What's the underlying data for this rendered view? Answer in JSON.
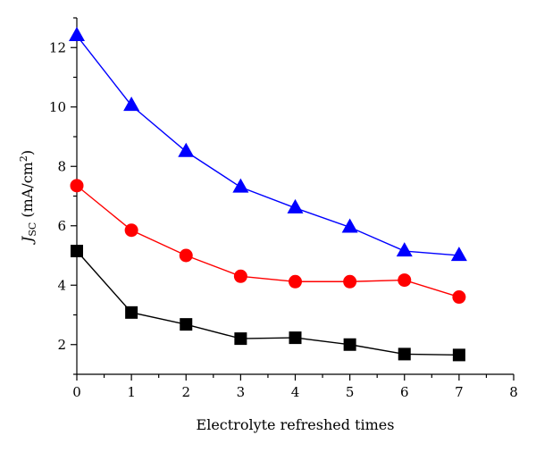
{
  "chart_data": {
    "type": "line",
    "title": "",
    "xlabel": "Electrolyte refreshed times",
    "ylabel_main": "J",
    "ylabel_sub": "SC",
    "ylabel_unit_open": " (mA/cm",
    "ylabel_unit_sup": "2",
    "ylabel_unit_close": ")",
    "xlim": [
      0,
      8
    ],
    "ylim": [
      1,
      13
    ],
    "xticks": [
      0,
      1,
      2,
      3,
      4,
      5,
      6,
      7,
      8
    ],
    "yticks": [
      2,
      4,
      6,
      8,
      10,
      12
    ],
    "grid": false,
    "legend": "none",
    "x": [
      0,
      1,
      2,
      3,
      4,
      5,
      6,
      7
    ],
    "series": [
      {
        "color": "#0000ff",
        "marker": "triangle",
        "values": [
          12.4,
          10.05,
          8.5,
          7.3,
          6.6,
          5.95,
          5.15,
          5.0
        ]
      },
      {
        "color": "#ff0000",
        "marker": "circle",
        "values": [
          7.35,
          5.85,
          5.0,
          4.3,
          4.12,
          4.12,
          4.17,
          3.6
        ]
      },
      {
        "color": "#000000",
        "marker": "square",
        "values": [
          5.15,
          3.08,
          2.68,
          2.2,
          2.23,
          2.0,
          1.68,
          1.65
        ]
      }
    ]
  }
}
